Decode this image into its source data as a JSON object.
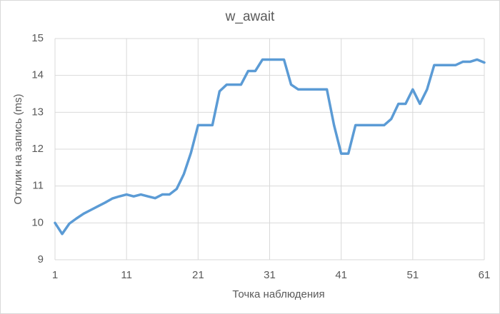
{
  "chart_data": {
    "type": "line",
    "title": "w_await",
    "x_label": "Точка наблюдения",
    "y_label": "Отклик на запись (ms)",
    "x": [
      1,
      2,
      3,
      4,
      5,
      6,
      7,
      8,
      9,
      10,
      11,
      12,
      13,
      14,
      15,
      16,
      17,
      18,
      19,
      20,
      21,
      22,
      23,
      24,
      25,
      26,
      27,
      28,
      29,
      30,
      31,
      32,
      33,
      34,
      35,
      36,
      37,
      38,
      39,
      40,
      41,
      42,
      43,
      44,
      45,
      46,
      47,
      48,
      49,
      50,
      51,
      52,
      53,
      54,
      55,
      56,
      57,
      58,
      59,
      60,
      61
    ],
    "series": [
      {
        "name": "w_await",
        "color": "#5b9bd5",
        "values": [
          10.0,
          9.7,
          9.98,
          10.12,
          10.25,
          10.35,
          10.45,
          10.55,
          10.66,
          10.72,
          10.77,
          10.72,
          10.77,
          10.72,
          10.67,
          10.77,
          10.77,
          10.92,
          11.32,
          11.9,
          12.65,
          12.65,
          12.65,
          13.57,
          13.75,
          13.75,
          13.75,
          14.12,
          14.12,
          14.43,
          14.43,
          14.43,
          14.43,
          13.75,
          13.62,
          13.62,
          13.62,
          13.62,
          13.62,
          12.65,
          11.88,
          11.88,
          12.65,
          12.65,
          12.65,
          12.65,
          12.65,
          12.82,
          13.23,
          13.23,
          13.62,
          13.23,
          13.62,
          14.28,
          14.28,
          14.28,
          14.28,
          14.37,
          14.37,
          14.43,
          14.35
        ]
      }
    ],
    "xlim": [
      1,
      61
    ],
    "xticks": [
      1,
      11,
      21,
      31,
      41,
      51,
      61
    ],
    "ylim": [
      9,
      15
    ],
    "yticks": [
      9,
      10,
      11,
      12,
      13,
      14,
      15
    ],
    "grid": true
  }
}
